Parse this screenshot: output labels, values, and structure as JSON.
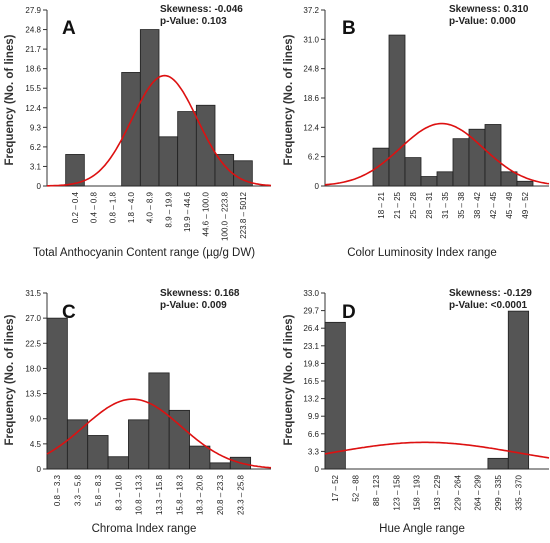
{
  "chart_data": [
    {
      "type": "bar",
      "panel": "A",
      "categories": [
        "0.2 – 0.4",
        "0.4 – 0.8",
        "0.8 – 1.8",
        "1.8 – 4.0",
        "4.0 – 8.9",
        "8.9 – 19.9",
        "19.9 – 44.6",
        "44.6 – 100.0",
        "100.0 – 223.8",
        "223.8 – 5012"
      ],
      "values": [
        5,
        0,
        0,
        18,
        24.8,
        7.8,
        11.8,
        12.8,
        5,
        4
      ],
      "yticks": [
        "0",
        "3.1",
        "6.2",
        "9.3",
        "12.4",
        "15.5",
        "18.6",
        "21.7",
        "24.8",
        "27.9"
      ],
      "ylim": [
        0,
        27.9
      ],
      "xlabel": "Total Anthocyanin Content range (µg/g DW)",
      "ylabel": "Frequency (No. of lines)",
      "stats": [
        "Skewness: -0.046",
        "p-Value: 0.103"
      ],
      "curve": {
        "mu": 5.3,
        "sigma": 1.75,
        "peak": 17.5
      },
      "left_gap": 1
    },
    {
      "type": "bar",
      "panel": "B",
      "categories": [
        "18 – 21",
        "21 – 25",
        "25 – 28",
        "28 – 31",
        "31 – 35",
        "35 – 38",
        "38 – 42",
        "42 – 45",
        "45 – 49",
        "49 – 52"
      ],
      "values": [
        8,
        31.9,
        6,
        2,
        3,
        10,
        12,
        13,
        3,
        1
      ],
      "yticks": [
        "0",
        "6.2",
        "12.4",
        "18.6",
        "24.8",
        "31.0",
        "37.2"
      ],
      "ylim": [
        0,
        37.2
      ],
      "xlabel": "Color Luminosity Index range",
      "ylabel": "Frequency (No. of lines)",
      "stats": [
        "Skewness: 0.310",
        "p-Value: 0.000"
      ],
      "curve": {
        "mu": 4.3,
        "sigma": 2.6,
        "peak": 13.2
      },
      "left_gap": 3
    },
    {
      "type": "bar",
      "panel": "C",
      "categories": [
        "0.8 – 3.3",
        "3.3 – 5.8",
        "5.8 – 8.3",
        "8.3 – 10.8",
        "10.8 – 13.3",
        "13.3 – 15.8",
        "15.8 – 18.3",
        "18.3 – 20.8",
        "20.8 – 23.3",
        "23.3 – 25.8"
      ],
      "values": [
        27,
        8.8,
        6,
        2.2,
        8.8,
        17.2,
        10.5,
        4.1,
        1.1,
        2.1
      ],
      "yticks": [
        "0",
        "4.5",
        "9.0",
        "13.5",
        "18.0",
        "22.5",
        "27.0",
        "31.5"
      ],
      "ylim": [
        0,
        31.5
      ],
      "xlabel": "Chroma Index range",
      "ylabel": "Frequency (No. of lines)",
      "stats": [
        "Skewness: 0.168",
        "p-Value: 0.009"
      ],
      "curve": {
        "mu": 4.2,
        "sigma": 2.4,
        "peak": 12.5
      },
      "left_gap": 0
    },
    {
      "type": "bar",
      "panel": "D",
      "categories": [
        "17 – 52",
        "52 – 88",
        "88 – 123",
        "123 – 158",
        "158 – 193",
        "193 – 229",
        "229 – 264",
        "264 – 299",
        "299 – 335",
        "335 – 370"
      ],
      "values": [
        27.5,
        0,
        0,
        0,
        0,
        0,
        0,
        0,
        2,
        29.6
      ],
      "yticks": [
        "0",
        "3.3",
        "6.6",
        "9.9",
        "13.2",
        "16.5",
        "19.8",
        "23.1",
        "26.4",
        "29.7",
        "33.0"
      ],
      "ylim": [
        0,
        33.0
      ],
      "xlabel": "Hue Angle range",
      "ylabel": "Frequency (No. of lines)",
      "stats": [
        "Skewness: -0.129",
        "p-Value: <0.0001"
      ],
      "curve": {
        "mu": 4.9,
        "sigma": 4.6,
        "peak": 5.0
      },
      "left_gap": 0
    }
  ],
  "colors": {
    "bar_fill": "#555555",
    "bar_stroke": "#1f1f1f",
    "curve": "#dd1111",
    "axis": "#333333"
  }
}
